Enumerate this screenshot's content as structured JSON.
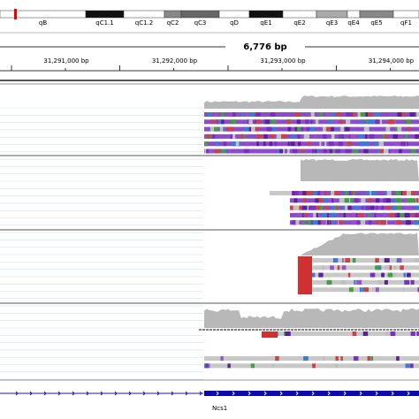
{
  "ideogram": {
    "bands": [
      "qB",
      "qC1.1",
      "qC1.2",
      "qC2",
      "qC3",
      "qD",
      "qE1",
      "qE2",
      "qE3",
      "qE4",
      "qE5",
      "qF1"
    ]
  },
  "ruler": {
    "span": "6,776 bp",
    "ticks": [
      "31,291,000 bp",
      "31,292,000 bp",
      "31,293,000 bp",
      "31,294,000 bp"
    ]
  },
  "gene": {
    "name": "Ncs1"
  }
}
